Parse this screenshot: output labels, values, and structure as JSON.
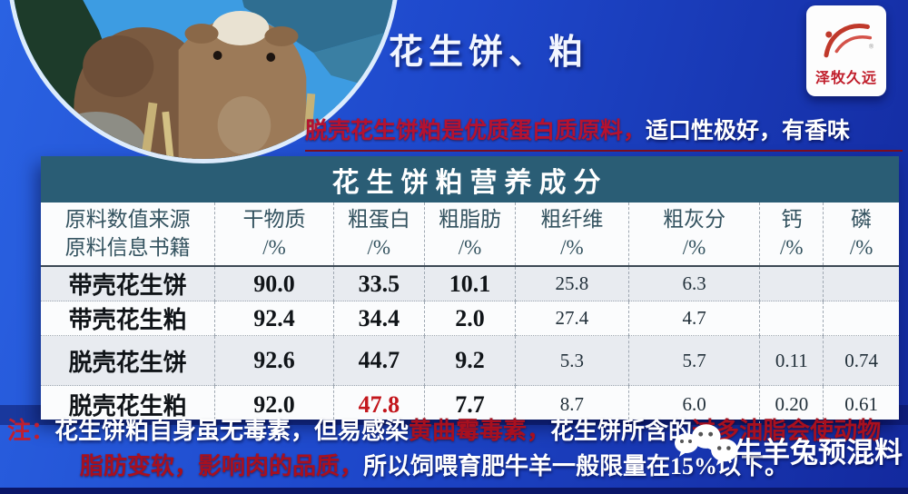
{
  "header": {
    "title": "花生饼、粕",
    "logo_text": "泽牧久远"
  },
  "lead": {
    "red": "脱壳花生饼粕是优质蛋白质原料，",
    "white": "适口性极好，有香味"
  },
  "table": {
    "title": "花生饼粕营养成分",
    "source_header": [
      "原料数值来源",
      "原料信息书籍"
    ],
    "columns": [
      {
        "name": "干物质",
        "unit": "/%"
      },
      {
        "name": "粗蛋白",
        "unit": "/%"
      },
      {
        "name": "粗脂肪",
        "unit": "/%"
      },
      {
        "name": "粗纤维",
        "unit": "/%"
      },
      {
        "name": "粗灰分",
        "unit": "/%"
      },
      {
        "name": "钙",
        "unit": "/%"
      },
      {
        "name": "磷",
        "unit": "/%"
      }
    ],
    "rows": [
      {
        "label": "带壳花生饼",
        "values": [
          "90.0",
          "33.5",
          "10.1",
          "25.8",
          "6.3",
          "",
          ""
        ],
        "highlight_col": -1
      },
      {
        "label": "带壳花生粕",
        "values": [
          "92.4",
          "34.4",
          "2.0",
          "27.4",
          "4.7",
          "",
          ""
        ],
        "highlight_col": -1
      },
      {
        "label": "脱壳花生饼",
        "values": [
          "92.6",
          "44.7",
          "9.2",
          "5.3",
          "5.7",
          "0.11",
          "0.74"
        ],
        "highlight_col": -1
      },
      {
        "label": "脱壳花生粕",
        "values": [
          "92.0",
          "47.8",
          "7.7",
          "8.7",
          "6.0",
          "0.20",
          "0.61"
        ],
        "highlight_col": 1
      }
    ]
  },
  "note": {
    "prefix": "注：",
    "line1": [
      {
        "text": "花生饼粕自身虽无毒素，但易感染",
        "color": "white"
      },
      {
        "text": "黄曲霉毒素，",
        "color": "red"
      },
      {
        "text": "花生饼所含的",
        "color": "white"
      },
      {
        "text": "过多油脂会使动物",
        "color": "red"
      }
    ],
    "line2": [
      {
        "text": "脂肪变软，影响肉的品质，",
        "color": "red"
      },
      {
        "text": "所以饲喂育肥牛羊一般限量在15%以下。",
        "color": "white"
      }
    ]
  },
  "watermark": {
    "text": "牛羊兔预混料",
    "icon": "wechat-bubbles"
  },
  "colors": {
    "background_blue": "#1e48cb",
    "table_header_teal": "#2a5d75",
    "highlight_red": "#c3161c",
    "lead_red": "#b51230",
    "logo_red": "#c01d2a",
    "alt_row": "#e8ebf0"
  }
}
